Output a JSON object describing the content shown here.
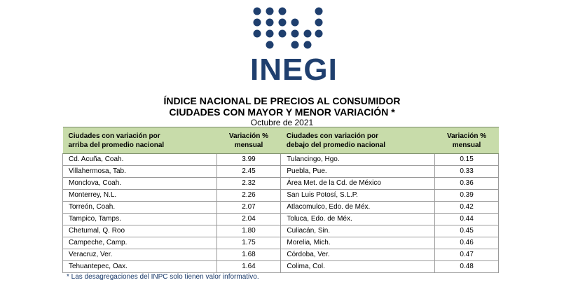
{
  "logo": {
    "text": "INEGI",
    "color": "#1f3f6e"
  },
  "title_line1": "ÍNDICE NACIONAL DE PRECIOS AL CONSUMIDOR",
  "title_line2": "CIUDADES CON MAYOR Y MENOR VARIACIÓN *",
  "subtitle": "Octubre de 2021",
  "table": {
    "header_color": "#c8dcaa",
    "headers": {
      "col1_line1": "Ciudades con variación por",
      "col1_line2": "arriba del promedio nacional",
      "col2_line1": "Variación %",
      "col2_line2": "mensual",
      "col3_line1": "Ciudades con variación por",
      "col3_line2": "debajo del promedio nacional",
      "col4_line1": "Variación %",
      "col4_line2": "mensual"
    },
    "rows": [
      {
        "city_above": "Cd. Acuña, Coah.",
        "var_above": "3.99",
        "city_below": "Tulancingo, Hgo.",
        "var_below": "0.15"
      },
      {
        "city_above": "Villahermosa, Tab.",
        "var_above": "2.45",
        "city_below": "Puebla, Pue.",
        "var_below": "0.33"
      },
      {
        "city_above": "Monclova, Coah.",
        "var_above": "2.32",
        "city_below": "Área Met. de la Cd. de México",
        "var_below": "0.36"
      },
      {
        "city_above": "Monterrey, N.L.",
        "var_above": "2.26",
        "city_below": "San Luis Potosí, S.L.P.",
        "var_below": "0.39"
      },
      {
        "city_above": "Torreón, Coah.",
        "var_above": "2.07",
        "city_below": "Atlacomulco, Edo. de Méx.",
        "var_below": "0.42"
      },
      {
        "city_above": "Tampico, Tamps.",
        "var_above": "2.04",
        "city_below": "Toluca, Edo. de Méx.",
        "var_below": "0.44"
      },
      {
        "city_above": "Chetumal, Q. Roo",
        "var_above": "1.80",
        "city_below": "Culiacán, Sin.",
        "var_below": "0.45"
      },
      {
        "city_above": "Campeche, Camp.",
        "var_above": "1.75",
        "city_below": "Morelia, Mich.",
        "var_below": "0.46"
      },
      {
        "city_above": "Veracruz, Ver.",
        "var_above": "1.68",
        "city_below": "Córdoba, Ver.",
        "var_below": "0.47"
      },
      {
        "city_above": "Tehuantepec, Oax.",
        "var_above": "1.64",
        "city_below": "Colima, Col.",
        "var_below": "0.48"
      }
    ]
  },
  "footnote": "*  Las desagregaciones del INPC solo tienen valor informativo."
}
